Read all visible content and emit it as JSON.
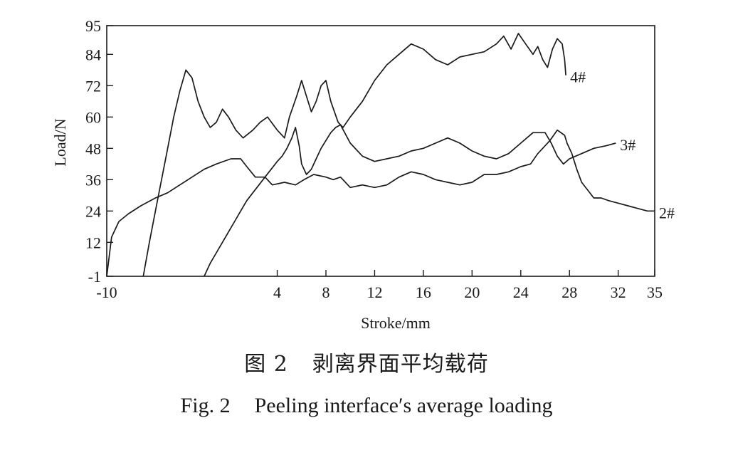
{
  "chart_data": {
    "type": "line",
    "xlabel": "Stroke/mm",
    "ylabel": "Load/N",
    "xlim": [
      -10,
      35
    ],
    "ylim": [
      -1,
      95
    ],
    "x_ticks": [
      -10,
      4,
      8,
      12,
      16,
      20,
      24,
      28,
      32,
      35
    ],
    "y_ticks": [
      -1,
      12,
      24,
      36,
      48,
      60,
      72,
      84,
      95
    ],
    "grid": false,
    "legend": "none",
    "series": [
      {
        "name": "2#",
        "color": "#1a1a1a",
        "points": [
          [
            -10,
            -1
          ],
          [
            -9.6,
            14
          ],
          [
            -9.0,
            20
          ],
          [
            -8.2,
            23
          ],
          [
            -7.2,
            26
          ],
          [
            -6.0,
            29
          ],
          [
            -5.0,
            31
          ],
          [
            -4.0,
            34
          ],
          [
            -3.0,
            37
          ],
          [
            -2.0,
            40
          ],
          [
            -1.0,
            42
          ],
          [
            0.2,
            44
          ],
          [
            1.0,
            44
          ],
          [
            1.5,
            41
          ],
          [
            2.2,
            37
          ],
          [
            3.0,
            37
          ],
          [
            3.6,
            34
          ],
          [
            4.6,
            35
          ],
          [
            5.5,
            34
          ],
          [
            6.2,
            36
          ],
          [
            7.0,
            38
          ],
          [
            8.0,
            37
          ],
          [
            8.6,
            36
          ],
          [
            9.2,
            37
          ],
          [
            10.0,
            33
          ],
          [
            11.0,
            34
          ],
          [
            12.0,
            33
          ],
          [
            13.0,
            34
          ],
          [
            14.0,
            37
          ],
          [
            15.0,
            39
          ],
          [
            16.0,
            38
          ],
          [
            17.0,
            36
          ],
          [
            18.0,
            35
          ],
          [
            19.0,
            34
          ],
          [
            20.0,
            35
          ],
          [
            21.0,
            38
          ],
          [
            22.0,
            38
          ],
          [
            23.0,
            39
          ],
          [
            24.0,
            41
          ],
          [
            24.8,
            42
          ],
          [
            25.4,
            46
          ],
          [
            25.8,
            48
          ],
          [
            26.4,
            51
          ],
          [
            27.0,
            55
          ],
          [
            27.6,
            53
          ],
          [
            27.8,
            50
          ],
          [
            28.2,
            46
          ],
          [
            28.6,
            40
          ],
          [
            29.0,
            35
          ],
          [
            29.5,
            32
          ],
          [
            30.0,
            29
          ],
          [
            30.6,
            29
          ],
          [
            31.2,
            28
          ],
          [
            32.0,
            27
          ],
          [
            32.8,
            26
          ],
          [
            33.6,
            25
          ],
          [
            34.4,
            24
          ],
          [
            35,
            24
          ]
        ]
      },
      {
        "name": "3#",
        "color": "#1a1a1a",
        "points": [
          [
            -2.0,
            -1
          ],
          [
            -1.5,
            4
          ],
          [
            -1.0,
            8
          ],
          [
            -0.5,
            12
          ],
          [
            0.0,
            16
          ],
          [
            0.5,
            20
          ],
          [
            1.0,
            24
          ],
          [
            1.5,
            28
          ],
          [
            2.0,
            31
          ],
          [
            2.5,
            34
          ],
          [
            3.0,
            37
          ],
          [
            3.5,
            40
          ],
          [
            4.0,
            43
          ],
          [
            4.4,
            45
          ],
          [
            4.8,
            48
          ],
          [
            5.2,
            52
          ],
          [
            5.5,
            56
          ],
          [
            5.8,
            49
          ],
          [
            6.0,
            42
          ],
          [
            6.4,
            38
          ],
          [
            6.8,
            40
          ],
          [
            7.2,
            44
          ],
          [
            7.6,
            48
          ],
          [
            8.0,
            51
          ],
          [
            8.4,
            54
          ],
          [
            8.8,
            56
          ],
          [
            9.2,
            57
          ],
          [
            10.0,
            50
          ],
          [
            11.0,
            45
          ],
          [
            12.0,
            43
          ],
          [
            13.0,
            44
          ],
          [
            14.0,
            45
          ],
          [
            15.0,
            47
          ],
          [
            16.0,
            48
          ],
          [
            17.0,
            50
          ],
          [
            18.0,
            52
          ],
          [
            19.0,
            50
          ],
          [
            20.0,
            47
          ],
          [
            21.0,
            45
          ],
          [
            22.0,
            44
          ],
          [
            23.0,
            46
          ],
          [
            24.0,
            50
          ],
          [
            25.0,
            54
          ],
          [
            26.0,
            54
          ],
          [
            26.5,
            50
          ],
          [
            27.0,
            45
          ],
          [
            27.5,
            42
          ],
          [
            28.0,
            44
          ],
          [
            29.0,
            46
          ],
          [
            30.0,
            48
          ],
          [
            31.0,
            49
          ],
          [
            31.8,
            50
          ]
        ]
      },
      {
        "name": "4#",
        "color": "#1a1a1a",
        "points": [
          [
            -7.0,
            -1
          ],
          [
            -6.5,
            12
          ],
          [
            -6.0,
            24
          ],
          [
            -5.5,
            36
          ],
          [
            -5.0,
            48
          ],
          [
            -4.5,
            60
          ],
          [
            -4.0,
            70
          ],
          [
            -3.5,
            78
          ],
          [
            -3.0,
            75
          ],
          [
            -2.5,
            66
          ],
          [
            -2.0,
            60
          ],
          [
            -1.5,
            56
          ],
          [
            -1.0,
            58
          ],
          [
            -0.5,
            63
          ],
          [
            0.0,
            60
          ],
          [
            0.6,
            55
          ],
          [
            1.2,
            52
          ],
          [
            2.0,
            55
          ],
          [
            2.6,
            58
          ],
          [
            3.2,
            60
          ],
          [
            4.0,
            55
          ],
          [
            4.6,
            52
          ],
          [
            5.0,
            60
          ],
          [
            5.6,
            68
          ],
          [
            6.0,
            74
          ],
          [
            6.4,
            68
          ],
          [
            6.8,
            62
          ],
          [
            7.2,
            66
          ],
          [
            7.6,
            72
          ],
          [
            8.0,
            74
          ],
          [
            8.4,
            66
          ],
          [
            9.0,
            58
          ],
          [
            9.4,
            56
          ],
          [
            10.0,
            60
          ],
          [
            11.0,
            66
          ],
          [
            12.0,
            74
          ],
          [
            13.0,
            80
          ],
          [
            14.0,
            84
          ],
          [
            15.0,
            88
          ],
          [
            16.0,
            86
          ],
          [
            17.0,
            82
          ],
          [
            18.0,
            80
          ],
          [
            19.0,
            83
          ],
          [
            20.0,
            84
          ],
          [
            21.0,
            85
          ],
          [
            22.0,
            88
          ],
          [
            22.6,
            91
          ],
          [
            23.2,
            86
          ],
          [
            23.8,
            92
          ],
          [
            24.4,
            88
          ],
          [
            25.0,
            84
          ],
          [
            25.4,
            87
          ],
          [
            25.8,
            82
          ],
          [
            26.2,
            79
          ],
          [
            26.6,
            86
          ],
          [
            27.0,
            90
          ],
          [
            27.4,
            88
          ],
          [
            27.6,
            82
          ],
          [
            27.7,
            76
          ]
        ]
      }
    ],
    "annotations": [
      {
        "text": "4#",
        "series": "4#"
      },
      {
        "text": "3#",
        "series": "3#"
      },
      {
        "text": "2#",
        "series": "2#"
      }
    ]
  },
  "caption": {
    "cn_number": "图 2",
    "cn_title": "剥离界面平均载荷",
    "en_number": "Fig. 2",
    "en_title": "Peeling interface′s average loading"
  }
}
